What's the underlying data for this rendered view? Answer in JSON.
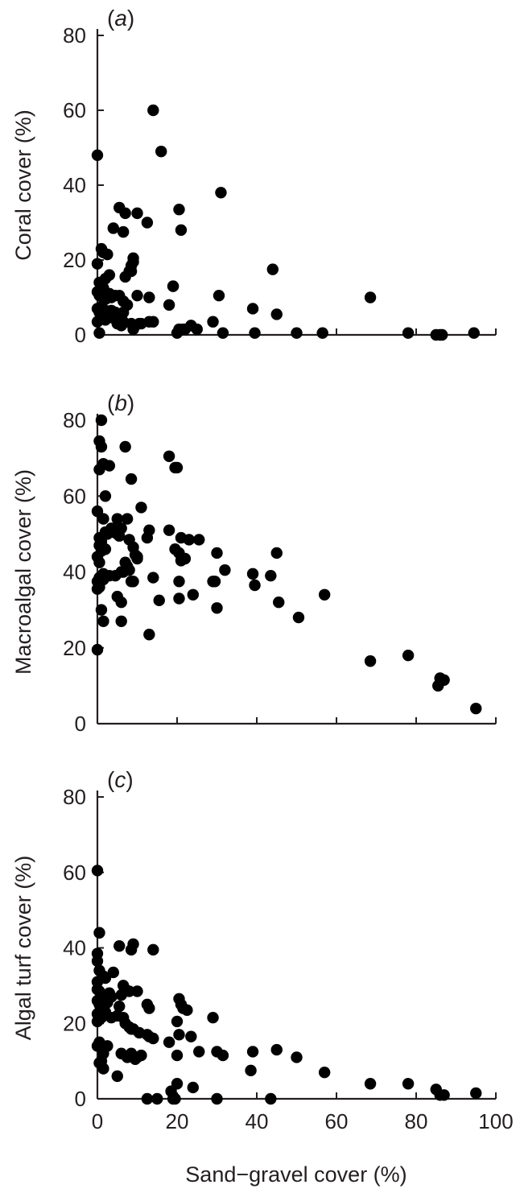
{
  "figure": {
    "xlabel": "Sand−gravel cover (%)",
    "x_ticks": [
      "0",
      "20",
      "40",
      "60",
      "80",
      "100"
    ],
    "y_ticks": [
      "0",
      "20",
      "40",
      "60",
      "80"
    ],
    "marker_color": "#000000",
    "axis_color": "#231f20"
  },
  "chart_data": [
    {
      "type": "scatter",
      "panel_label": "(a)",
      "ylabel": "Coral cover (%)",
      "xlabel": "",
      "xlim": [
        0,
        100
      ],
      "ylim": [
        0,
        80
      ],
      "grid": false,
      "x": [
        0.5,
        0,
        19,
        14,
        16,
        31,
        5.5,
        7,
        20.5,
        21,
        10,
        12.5,
        4,
        6.5,
        1,
        1.5,
        2.5,
        9,
        9,
        8.5,
        0,
        0.5,
        1,
        1.5,
        2,
        3,
        0,
        0.5,
        1,
        1.5,
        2,
        2.5,
        3,
        3.5,
        4.5,
        5.5,
        6.5,
        7,
        8,
        8.5,
        10,
        13,
        0,
        0.5,
        1,
        2,
        2.5,
        3,
        3.5,
        4.5,
        5,
        5.5,
        6,
        6.5,
        7.5,
        8.5,
        9.5,
        11,
        13,
        14,
        0,
        2,
        4,
        5,
        6,
        6.5,
        9,
        10.5,
        18,
        19,
        20,
        30.5,
        44,
        39,
        45,
        29,
        22,
        23.5,
        25,
        20.5,
        21.5,
        31.5,
        39.5,
        50,
        56.5,
        68.5,
        78,
        85,
        86,
        86.5,
        94.5
      ],
      "y": [
        0.5,
        48,
        13,
        60,
        49,
        38,
        34,
        32.5,
        33.5,
        28,
        32.5,
        30,
        28.5,
        27.5,
        23,
        22,
        21.5,
        20.5,
        19.5,
        17,
        19,
        14,
        13.5,
        12.5,
        15,
        16,
        11.5,
        10.5,
        11,
        10,
        9.5,
        10.5,
        11,
        10,
        10.5,
        10.5,
        9,
        15.5,
        17,
        18.5,
        10.5,
        10,
        7,
        6,
        7.5,
        6.5,
        6,
        5,
        6.5,
        6,
        5.5,
        4.5,
        5,
        6,
        8,
        3,
        2.5,
        3,
        3.5,
        3.5,
        3.5,
        4,
        4.5,
        3,
        2.5,
        3.5,
        1.5,
        3,
        8,
        13,
        0.5,
        10.5,
        17.5,
        7,
        5.5,
        3.5,
        1.5,
        2.5,
        1.5,
        1.5,
        1.5,
        0.5,
        0.5,
        0.5,
        0.5,
        10,
        0.5,
        0,
        0,
        0,
        0.5
      ]
    },
    {
      "type": "scatter",
      "panel_label": "(b)",
      "ylabel": "Macroalgal cover (%)",
      "xlabel": "",
      "xlim": [
        0,
        100
      ],
      "ylim": [
        0,
        80
      ],
      "grid": false,
      "x": [
        1,
        0.5,
        1,
        18,
        7,
        1.5,
        3,
        19.5,
        20,
        0.5,
        8.5,
        2,
        0,
        0.5,
        11,
        1.5,
        3.5,
        5,
        7.5,
        4.5,
        6,
        0.5,
        1,
        2,
        2.5,
        3.5,
        4,
        5,
        0,
        0.5,
        1,
        2,
        5.5,
        7,
        8,
        9,
        9.5,
        10,
        12.5,
        13,
        0,
        0.5,
        1,
        1.5,
        0,
        0.5,
        1.5,
        3,
        4.5,
        6,
        6.5,
        7.5,
        8,
        8.5,
        9,
        10,
        18,
        19.5,
        20.5,
        21,
        22,
        23,
        25.5,
        21,
        29.5,
        30,
        32,
        20.5,
        20.5,
        24,
        39,
        39.5,
        43.5,
        45.5,
        50.5,
        57,
        14,
        15.5,
        5,
        6,
        6,
        1,
        1.5,
        0,
        13,
        29,
        30,
        45,
        68.5,
        78,
        85.5,
        86,
        87,
        95
      ],
      "y": [
        80,
        74.5,
        73,
        70.5,
        73,
        68.5,
        68,
        67.5,
        67.5,
        67,
        64.5,
        60,
        56,
        49,
        57,
        54,
        51.5,
        54,
        54,
        51,
        51.5,
        47,
        48,
        50.5,
        50,
        51,
        50.5,
        50,
        44,
        42.5,
        45.5,
        46,
        49.5,
        42.5,
        48.5,
        46.5,
        44.5,
        44,
        49,
        51,
        37.5,
        38.5,
        38.5,
        38,
        35.5,
        36,
        39.5,
        39,
        39,
        40,
        40,
        41.5,
        40.5,
        37.5,
        37.5,
        43.5,
        51,
        46,
        45,
        43,
        43.5,
        48.5,
        48.5,
        49,
        37.5,
        45,
        40.5,
        37.5,
        33,
        34,
        39.5,
        36.5,
        39,
        32,
        28,
        34,
        38.5,
        32.5,
        33.5,
        27,
        32,
        30,
        27,
        19.5,
        23.5,
        37.5,
        30.5,
        45,
        16.5,
        18,
        10,
        12,
        11.5,
        4
      ]
    },
    {
      "type": "scatter",
      "panel_label": "(c)",
      "ylabel": "Algal turf cover (%)",
      "xlabel": "Sand−gravel cover (%)",
      "xlim": [
        0,
        100
      ],
      "ylim": [
        0,
        80
      ],
      "grid": false,
      "x": [
        0,
        0.5,
        0,
        0,
        0.5,
        0,
        5.5,
        8.5,
        9,
        14,
        0,
        0.5,
        1.5,
        2,
        3,
        4,
        6.5,
        7,
        10,
        12.5,
        13,
        0,
        0.5,
        1,
        1.5,
        2.5,
        3.5,
        5.5,
        6,
        8,
        0,
        0.5,
        1.5,
        2,
        2.5,
        3,
        0,
        0.5,
        1,
        2,
        3.5,
        5,
        6.5,
        7,
        8,
        8.5,
        9,
        10.5,
        12.5,
        13,
        14,
        0,
        0.5,
        1,
        1.5,
        2.5,
        6,
        7.5,
        8.5,
        9.5,
        10,
        11,
        1,
        1.5,
        5,
        0.5,
        20.5,
        21,
        21.5,
        20,
        29,
        18,
        20.5,
        22.5,
        23.5,
        25.5,
        30,
        31.5,
        38.5,
        39,
        45,
        50,
        57,
        68.5,
        78,
        85,
        86,
        87,
        95,
        20,
        24,
        20,
        18.5,
        12.5,
        15,
        19,
        19.5,
        30,
        43.5
      ],
      "y": [
        60.5,
        44,
        38.5,
        36.5,
        34,
        31,
        40.5,
        39.5,
        41,
        39.5,
        29,
        28.5,
        32.5,
        32,
        28,
        33.5,
        30,
        29,
        28.5,
        25,
        24,
        26,
        25,
        24.5,
        26,
        27,
        27,
        24.5,
        27.5,
        28.5,
        22.5,
        23,
        24,
        26,
        25.5,
        27,
        20.5,
        21,
        21.5,
        23,
        21.5,
        22,
        21.5,
        20,
        19,
        18.5,
        18.5,
        17.5,
        17,
        16.5,
        16,
        14,
        15,
        13.5,
        12,
        14,
        12,
        11,
        12,
        10.5,
        11,
        11.5,
        10,
        8,
        6,
        9.5,
        26.5,
        25,
        24,
        20.5,
        21.5,
        15,
        17,
        23.5,
        16.5,
        12.5,
        12.5,
        11.5,
        7.5,
        12.5,
        13,
        11,
        7,
        4,
        4,
        2.5,
        1,
        1,
        1.5,
        11.5,
        3,
        4,
        2,
        0,
        0,
        0,
        0,
        0,
        0
      ]
    }
  ]
}
